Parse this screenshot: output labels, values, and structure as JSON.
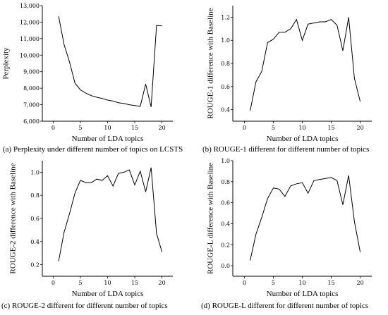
{
  "chart_data": [
    {
      "type": "line",
      "xlabel": "Number of LDA topics",
      "ylabel": "Perplexity",
      "xlim": [
        -2,
        22
      ],
      "ylim": [
        6000,
        13000
      ],
      "xticks": [
        0,
        5,
        10,
        15,
        20
      ],
      "yticks": [
        6000,
        7000,
        8000,
        9000,
        10000,
        11000,
        12000,
        13000
      ],
      "ytick_labels": [
        "6,000",
        "7,000",
        "8,000",
        "9,000",
        "10,000",
        "11,000",
        "12,000",
        "13,000"
      ],
      "x": [
        1,
        2,
        3,
        4,
        5,
        6,
        7,
        8,
        9,
        10,
        11,
        12,
        13,
        14,
        15,
        16,
        17,
        18,
        19,
        20
      ],
      "values": [
        12350,
        10650,
        9600,
        8300,
        7900,
        7700,
        7550,
        7450,
        7380,
        7280,
        7220,
        7120,
        7070,
        7000,
        6950,
        6900,
        8250,
        6860,
        11800,
        11780
      ],
      "caption": "(a) Perplexity under different number of topics on LCSTS"
    },
    {
      "type": "line",
      "xlabel": "Number of LDA topics",
      "ylabel": "ROUGE-1 difference with Baseline",
      "xlim": [
        -2,
        22
      ],
      "ylim": [
        0.3,
        1.3
      ],
      "xticks": [
        0,
        5,
        10,
        15,
        20
      ],
      "yticks": [
        0.4,
        0.6,
        0.8,
        1.0,
        1.2
      ],
      "ytick_labels": [
        "0.4",
        "0.6",
        "0.8",
        "1.0",
        "1.2"
      ],
      "x": [
        1,
        2,
        3,
        4,
        5,
        6,
        7,
        8,
        9,
        10,
        11,
        12,
        13,
        14,
        15,
        16,
        17,
        18,
        19,
        20
      ],
      "values": [
        0.39,
        0.64,
        0.73,
        0.98,
        1.01,
        1.07,
        1.07,
        1.1,
        1.18,
        1.0,
        1.14,
        1.15,
        1.16,
        1.16,
        1.18,
        1.13,
        0.91,
        1.2,
        0.67,
        0.47
      ],
      "caption": "(b) ROUGE-1 different for different number of  topics"
    },
    {
      "type": "line",
      "xlabel": "Number of LDA topics",
      "ylabel": "ROUGE-2 difference with Baseline",
      "xlim": [
        -2,
        22
      ],
      "ylim": [
        0.1,
        1.1
      ],
      "xticks": [
        0,
        5,
        10,
        15,
        20
      ],
      "yticks": [
        0.2,
        0.4,
        0.6,
        0.8,
        1.0
      ],
      "ytick_labels": [
        "0.2",
        "0.4",
        "0.6",
        "0.8",
        "1.0"
      ],
      "x": [
        1,
        2,
        3,
        4,
        5,
        6,
        7,
        8,
        9,
        10,
        11,
        12,
        13,
        14,
        15,
        16,
        17,
        18,
        19,
        20
      ],
      "values": [
        0.23,
        0.48,
        0.64,
        0.82,
        0.93,
        0.91,
        0.91,
        0.94,
        0.93,
        0.97,
        0.88,
        0.99,
        1.0,
        1.02,
        0.89,
        1.01,
        0.83,
        1.04,
        0.47,
        0.31
      ],
      "caption": "(c) ROUGE-2 different for different number of  topics"
    },
    {
      "type": "line",
      "xlabel": "Number of LDA topics",
      "ylabel": "ROUGE-L difference with Baseline",
      "xlim": [
        -2,
        22
      ],
      "ylim": [
        -0.1,
        1.0
      ],
      "xticks": [
        0,
        5,
        10,
        15,
        20
      ],
      "yticks": [
        0.0,
        0.2,
        0.4,
        0.6,
        0.8,
        1.0
      ],
      "ytick_labels": [
        "0.0",
        "0.2",
        "0.4",
        "0.6",
        "0.8",
        "1.0"
      ],
      "x": [
        1,
        2,
        3,
        4,
        5,
        6,
        7,
        8,
        9,
        10,
        11,
        12,
        13,
        14,
        15,
        16,
        17,
        18,
        19,
        20
      ],
      "values": [
        0.05,
        0.3,
        0.46,
        0.64,
        0.74,
        0.73,
        0.66,
        0.76,
        0.78,
        0.79,
        0.69,
        0.81,
        0.82,
        0.83,
        0.84,
        0.81,
        0.58,
        0.86,
        0.42,
        0.13
      ],
      "caption": "(d) ROUGE-L different for different number of  topics"
    }
  ]
}
